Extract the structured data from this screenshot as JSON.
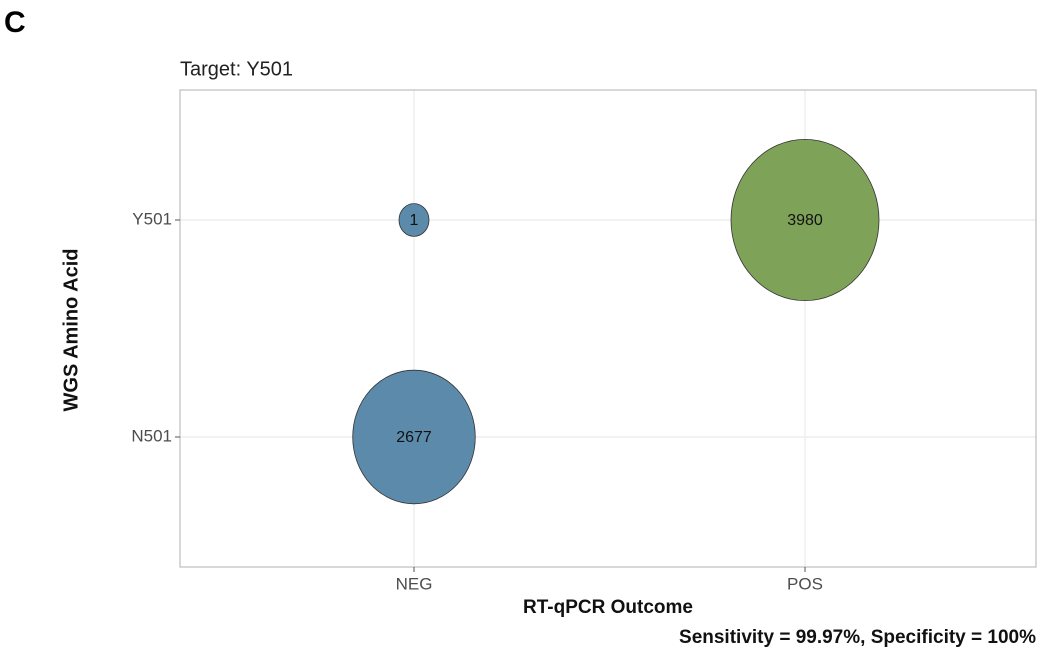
{
  "chart_data": {
    "type": "bubble",
    "panel_label": "C",
    "title": "Target: Y501",
    "x_label": "RT-qPCR Outcome",
    "y_label": "WGS Amino Acid",
    "caption": "Sensitivity = 99.97%, Specificity = 100%",
    "x_categories": [
      "NEG",
      "POS"
    ],
    "y_categories": [
      "N501",
      "Y501"
    ],
    "grid": true,
    "points": [
      {
        "x": "NEG",
        "y": "Y501",
        "size": 1,
        "color": "#5b8aab"
      },
      {
        "x": "POS",
        "y": "Y501",
        "size": 3980,
        "color": "#7fa259"
      },
      {
        "x": "NEG",
        "y": "N501",
        "size": 2677,
        "color": "#5b8aab"
      }
    ]
  }
}
